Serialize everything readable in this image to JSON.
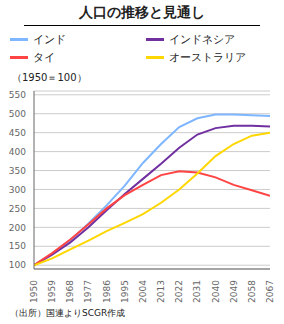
{
  "chart_data": {
    "type": "line",
    "title": "人口の推移と見通し",
    "subtitle": "（1950＝100）",
    "annotations": [
      "（出所）国連よりSCGR作成"
    ],
    "x": [
      1950,
      1959,
      1968,
      1977,
      1986,
      1995,
      2004,
      2013,
      2022,
      2031,
      2040,
      2049,
      2058,
      2067
    ],
    "series": [
      {
        "name": "インド",
        "color": "#7EB6FF",
        "values": [
          100,
          130,
          165,
          210,
          258,
          310,
          370,
          420,
          465,
          488,
          498,
          498,
          496,
          494
        ]
      },
      {
        "name": "インドネシア",
        "color": "#7030A0",
        "values": [
          100,
          128,
          160,
          200,
          245,
          288,
          328,
          368,
          410,
          445,
          462,
          468,
          468,
          466
        ]
      },
      {
        "name": "タイ",
        "color": "#FF4444",
        "values": [
          100,
          132,
          168,
          208,
          250,
          285,
          312,
          338,
          348,
          345,
          332,
          312,
          298,
          283
        ]
      },
      {
        "name": "オーストラリア",
        "color": "#FFD700",
        "values": [
          100,
          118,
          142,
          165,
          190,
          212,
          235,
          265,
          300,
          342,
          388,
          420,
          442,
          450
        ]
      }
    ],
    "xlim": [
      1950,
      2067
    ],
    "xticks": [
      1950,
      1959,
      1968,
      1977,
      1986,
      1995,
      2004,
      2013,
      2022,
      2031,
      2040,
      2049,
      2058,
      2067
    ],
    "ylim": [
      90,
      560
    ],
    "yticks": [
      100,
      150,
      200,
      250,
      300,
      350,
      400,
      450,
      500,
      550
    ],
    "grid": true,
    "legend": "top"
  }
}
